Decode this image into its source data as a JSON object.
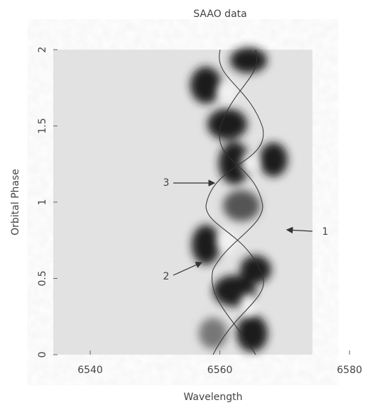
{
  "chart_data": {
    "type": "image",
    "title": "SAAO data",
    "x_label": "Wavelength",
    "y_label": "Orbital Phase",
    "xlim": [
      6534.3,
      6581.4
    ],
    "xticks": [
      6540,
      6560,
      6580
    ],
    "ylim": [
      0,
      2
    ],
    "yticks": [
      0,
      0.5,
      1,
      1.5,
      2
    ],
    "annotations": [
      "1",
      "2",
      "3"
    ]
  }
}
